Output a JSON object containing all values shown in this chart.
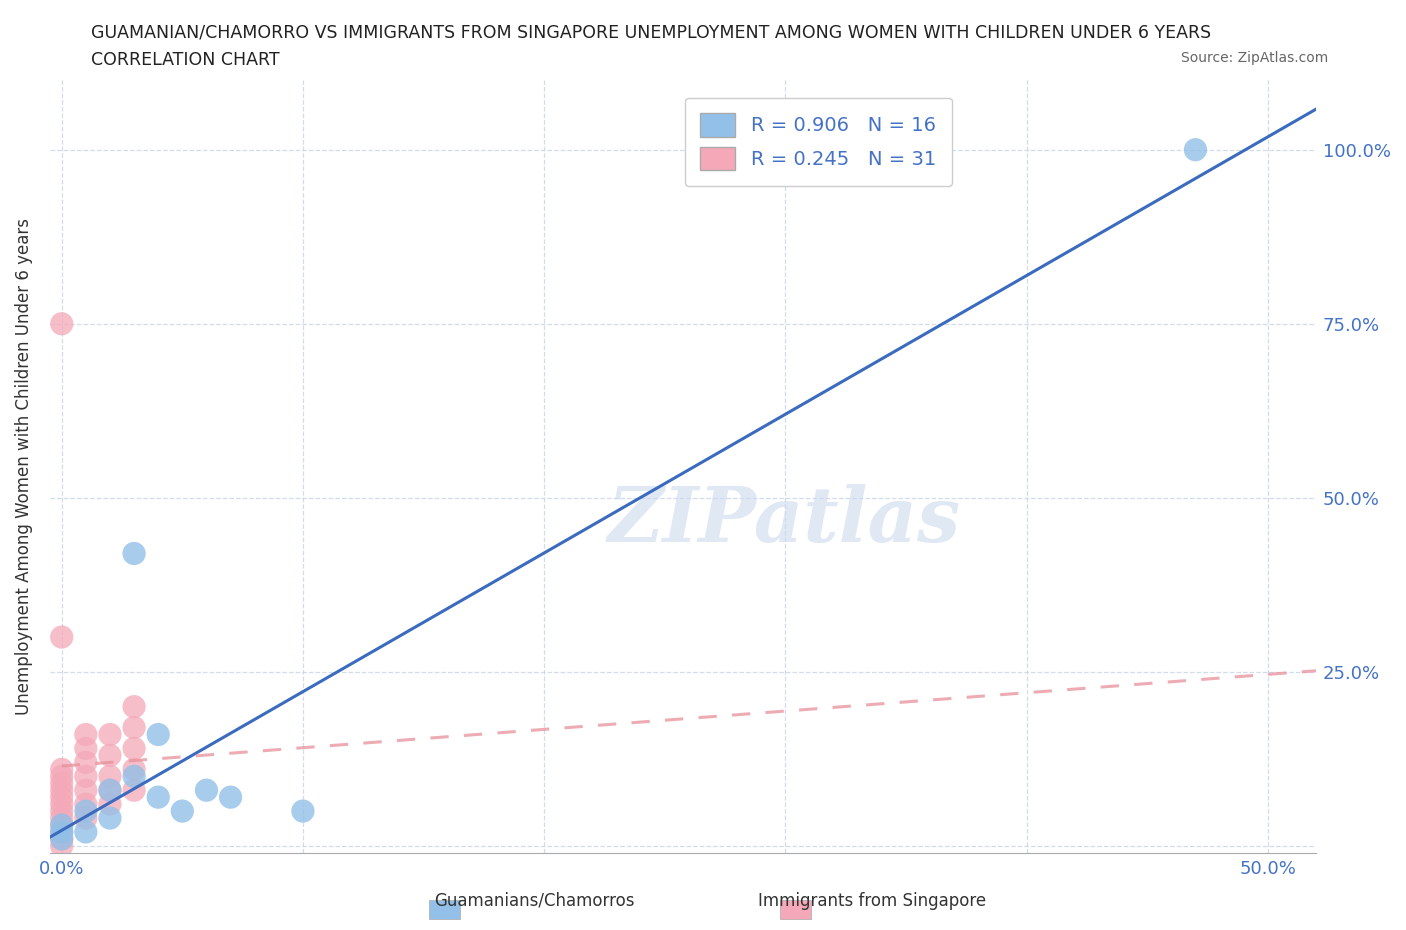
{
  "title_line1": "GUAMANIAN/CHAMORRO VS IMMIGRANTS FROM SINGAPORE UNEMPLOYMENT AMONG WOMEN WITH CHILDREN UNDER 6 YEARS",
  "title_line2": "CORRELATION CHART",
  "source": "Source: ZipAtlas.com",
  "ylabel": "Unemployment Among Women with Children Under 6 years",
  "xlim": [
    -0.005,
    0.52
  ],
  "ylim": [
    -0.01,
    1.1
  ],
  "xtick_positions": [
    0.0,
    0.1,
    0.2,
    0.3,
    0.4,
    0.5
  ],
  "xtick_labels": [
    "0.0%",
    "",
    "",
    "",
    "",
    "50.0%"
  ],
  "ytick_positions": [
    0.0,
    0.25,
    0.5,
    0.75,
    1.0
  ],
  "ytick_labels": [
    "",
    "25.0%",
    "50.0%",
    "75.0%",
    "100.0%"
  ],
  "blue_color": "#92c0e8",
  "pink_color": "#f4a8b8",
  "blue_line_color": "#3a6bbf",
  "pink_line_color": "#e8909a",
  "r_blue": 0.906,
  "n_blue": 16,
  "r_pink": 0.245,
  "n_pink": 31,
  "watermark_text": "ZIPatlas",
  "legend_label_blue": "Guamanians/Chamorros",
  "legend_label_pink": "Immigrants from Singapore",
  "blue_x": [
    0.0,
    0.0,
    0.0,
    0.01,
    0.01,
    0.02,
    0.02,
    0.03,
    0.03,
    0.04,
    0.04,
    0.05,
    0.06,
    0.07,
    0.1,
    0.47
  ],
  "blue_y": [
    0.01,
    0.02,
    0.03,
    0.02,
    0.05,
    0.04,
    0.08,
    0.1,
    0.42,
    0.07,
    0.16,
    0.05,
    0.08,
    0.07,
    0.05,
    1.0
  ],
  "pink_x": [
    0.0,
    0.0,
    0.0,
    0.0,
    0.0,
    0.0,
    0.0,
    0.0,
    0.0,
    0.0,
    0.0,
    0.0,
    0.0,
    0.01,
    0.01,
    0.01,
    0.01,
    0.01,
    0.01,
    0.01,
    0.02,
    0.02,
    0.02,
    0.02,
    0.02,
    0.03,
    0.03,
    0.03,
    0.03,
    0.03,
    0.0
  ],
  "pink_y": [
    0.0,
    0.01,
    0.02,
    0.03,
    0.04,
    0.05,
    0.06,
    0.07,
    0.08,
    0.09,
    0.1,
    0.11,
    0.75,
    0.04,
    0.06,
    0.08,
    0.1,
    0.12,
    0.14,
    0.16,
    0.06,
    0.08,
    0.1,
    0.13,
    0.16,
    0.08,
    0.11,
    0.14,
    0.17,
    0.2,
    0.3
  ],
  "grid_color": "#c8d4e8",
  "tick_color": "#4472c4",
  "background_color": "#ffffff"
}
